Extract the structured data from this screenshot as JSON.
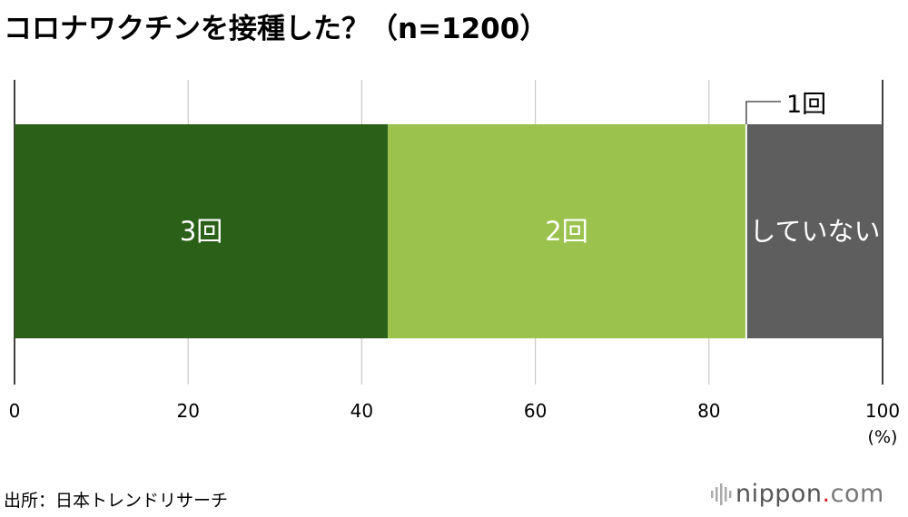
{
  "title": "コロナワクチンを接種した？（n=1200）",
  "source": "出所：日本トレンドリサーチ",
  "logo": {
    "name": "nippon",
    "dot": ".",
    "tld": "com",
    "icon": "sound-wave-icon"
  },
  "colors": {
    "3回": "#2b6019",
    "2回": "#9bc24c",
    "1回": "#ffffff",
    "していない": "#5e5e5e",
    "grid": "#c8c8c8",
    "axis": "#000000"
  },
  "chart_data": {
    "type": "bar",
    "orientation": "horizontal",
    "stacked": true,
    "title": "コロナワクチンを接種した？（n=1200）",
    "xlabel": "",
    "x_unit": "(%)",
    "xlim": [
      0,
      100
    ],
    "xticks": [
      0,
      20,
      40,
      60,
      80,
      100
    ],
    "grid": true,
    "legend": "inline",
    "series": [
      {
        "name": "3回",
        "value": 43.0
      },
      {
        "name": "2回",
        "value": 41.2
      },
      {
        "name": "1回",
        "value": 0.2
      },
      {
        "name": "していない",
        "value": 15.6
      }
    ]
  }
}
